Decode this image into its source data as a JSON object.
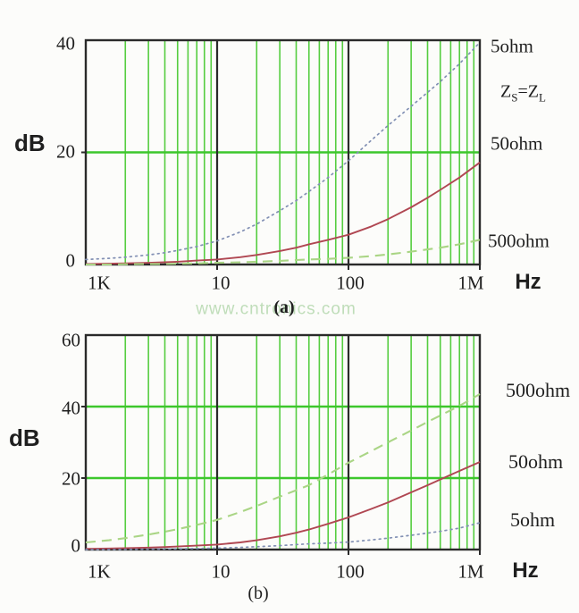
{
  "watermark": {
    "text": "www.cntronics.com",
    "color": "#b5d8ae"
  },
  "colors": {
    "background": "#fcfcfa",
    "grid_green_major": "#3dc72c",
    "grid_green_minor": "#55cd40",
    "axis_black": "#2a2a2a",
    "text": "#1f1f1f",
    "curve_blue_dotted": "#8290b4",
    "curve_red_solid": "#b04752",
    "curve_green_dashed": "#aad585"
  },
  "chart_data": [
    {
      "id": "a",
      "caption": "(a)",
      "type": "line",
      "xscale": "log",
      "xlabel_unit": "Hz",
      "ylabel_unit": "dB",
      "xlim_hz": [
        1000,
        1000000
      ],
      "ylim_db": [
        0,
        40
      ],
      "x_ticks": [
        {
          "hz": 1000,
          "label": "1K"
        },
        {
          "hz": 10000,
          "label": "10"
        },
        {
          "hz": 100000,
          "label": "100"
        },
        {
          "hz": 1000000,
          "label": "1M"
        }
      ],
      "y_ticks": [
        {
          "db": 40,
          "label": "40"
        },
        {
          "db": 20,
          "label": "20"
        },
        {
          "db": 0,
          "label": "0"
        }
      ],
      "h_major_gridlines_db": [
        20
      ],
      "v_black_lines_hz": [
        10000,
        100000
      ],
      "grid": "log minor verticals 2-9 each decade",
      "legend_position": "right",
      "annotation": {
        "p1": "Z",
        "s1": "S",
        "p2": "=Z",
        "s2": "L"
      },
      "x_hz": [
        1000,
        1500,
        2000,
        3000,
        4000,
        5000,
        7000,
        10000,
        15000,
        20000,
        30000,
        40000,
        50000,
        70000,
        100000,
        150000,
        200000,
        300000,
        400000,
        500000,
        700000,
        1000000
      ],
      "series": [
        {
          "name": "5ohm",
          "label": "5ohm",
          "line_style": "dotted",
          "color": "#8290b4",
          "y_db": [
            0.9,
            1.1,
            1.3,
            1.7,
            2.1,
            2.5,
            3.2,
            4.2,
            5.8,
            7.2,
            9.6,
            11.4,
            13.0,
            15.5,
            18.5,
            22.2,
            24.8,
            28.2,
            30.7,
            32.6,
            35.8,
            39.6
          ]
        },
        {
          "name": "50ohm",
          "label": "50ohm",
          "line_style": "solid",
          "color": "#b04752",
          "y_db": [
            0.1,
            0.15,
            0.2,
            0.3,
            0.4,
            0.5,
            0.7,
            0.9,
            1.3,
            1.7,
            2.4,
            3.0,
            3.6,
            4.4,
            5.3,
            6.8,
            8.1,
            10.2,
            11.9,
            13.3,
            15.5,
            18.2
          ]
        },
        {
          "name": "500ohm",
          "label": "500ohm",
          "line_style": "dashed",
          "color": "#aad585",
          "y_db": [
            0.0,
            0.0,
            0.05,
            0.1,
            0.1,
            0.15,
            0.2,
            0.3,
            0.4,
            0.5,
            0.65,
            0.8,
            0.9,
            1.0,
            1.2,
            1.5,
            1.8,
            2.3,
            2.7,
            3.0,
            3.6,
            4.4
          ]
        }
      ]
    },
    {
      "id": "b",
      "caption": "(b)",
      "type": "line",
      "xscale": "log",
      "xlabel_unit": "Hz",
      "ylabel_unit": "dB",
      "xlim_hz": [
        1000,
        1000000
      ],
      "ylim_db": [
        0,
        60
      ],
      "x_ticks": [
        {
          "hz": 1000,
          "label": "1K"
        },
        {
          "hz": 10000,
          "label": "10"
        },
        {
          "hz": 100000,
          "label": "100"
        },
        {
          "hz": 1000000,
          "label": "1M"
        }
      ],
      "y_ticks": [
        {
          "db": 60,
          "label": "60"
        },
        {
          "db": 40,
          "label": "40"
        },
        {
          "db": 20,
          "label": "20"
        },
        {
          "db": 0,
          "label": "0"
        }
      ],
      "h_major_gridlines_db": [
        20,
        40
      ],
      "v_black_lines_hz": [
        10000,
        100000
      ],
      "grid": "log minor verticals 2-9 each decade",
      "legend_position": "right",
      "x_hz": [
        1000,
        1500,
        2000,
        3000,
        4000,
        5000,
        7000,
        10000,
        15000,
        20000,
        30000,
        40000,
        50000,
        70000,
        100000,
        150000,
        200000,
        300000,
        400000,
        500000,
        700000,
        1000000
      ],
      "series": [
        {
          "name": "500ohm",
          "label": "500ohm",
          "line_style": "dashed",
          "color": "#aad585",
          "y_db": [
            2.0,
            2.6,
            3.2,
            4.2,
            5.0,
            5.7,
            6.9,
            8.3,
            10.5,
            12.2,
            14.8,
            16.6,
            18.0,
            21.0,
            24.3,
            27.6,
            30.0,
            33.3,
            35.7,
            37.5,
            40.2,
            43.5
          ]
        },
        {
          "name": "50ohm",
          "label": "50ohm",
          "line_style": "solid",
          "color": "#b04752",
          "y_db": [
            0.2,
            0.3,
            0.4,
            0.55,
            0.7,
            0.85,
            1.1,
            1.4,
            2.0,
            2.6,
            3.7,
            4.7,
            5.6,
            7.2,
            9.0,
            11.4,
            13.2,
            16.0,
            18.0,
            19.6,
            22.0,
            24.5
          ]
        },
        {
          "name": "5ohm",
          "label": "5ohm",
          "line_style": "dotted",
          "color": "#8290b4",
          "y_db": [
            0.0,
            0.0,
            0.05,
            0.1,
            0.15,
            0.2,
            0.3,
            0.4,
            0.6,
            0.8,
            1.1,
            1.4,
            1.6,
            1.8,
            2.1,
            2.7,
            3.2,
            4.0,
            4.6,
            5.1,
            6.0,
            7.5
          ]
        }
      ]
    }
  ]
}
